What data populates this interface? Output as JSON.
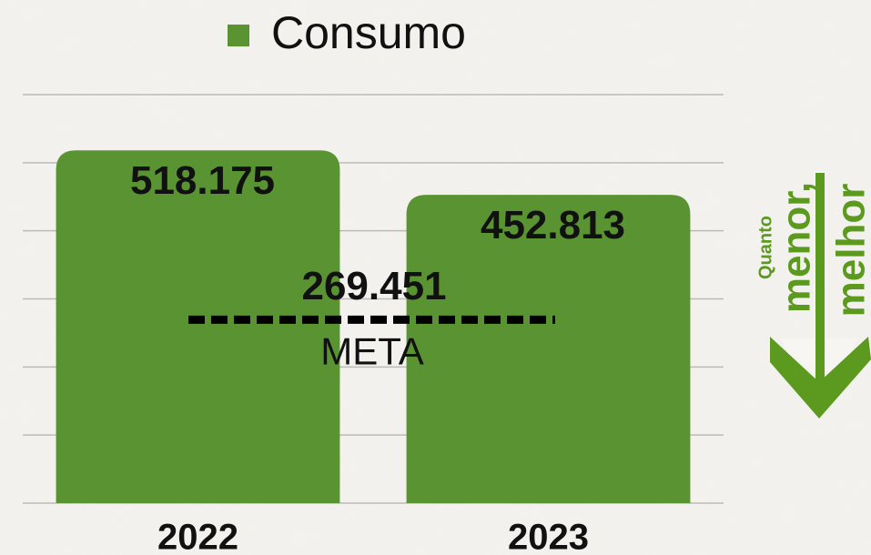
{
  "chart_data": {
    "type": "bar",
    "legend": "Consumo",
    "categories": [
      "2022",
      "2023"
    ],
    "values": [
      518175,
      452813
    ],
    "value_labels": [
      "518.175",
      "452.813"
    ],
    "color": "#5a9432",
    "ylim": [
      0,
      600000
    ],
    "yticks": [
      0,
      100000,
      200000,
      300000,
      400000,
      500000,
      600000
    ],
    "grid": true,
    "target": {
      "value": 269451,
      "label": "269.451",
      "text": "META"
    },
    "annotation": [
      "Quanto",
      "menor,",
      "melhor"
    ]
  }
}
